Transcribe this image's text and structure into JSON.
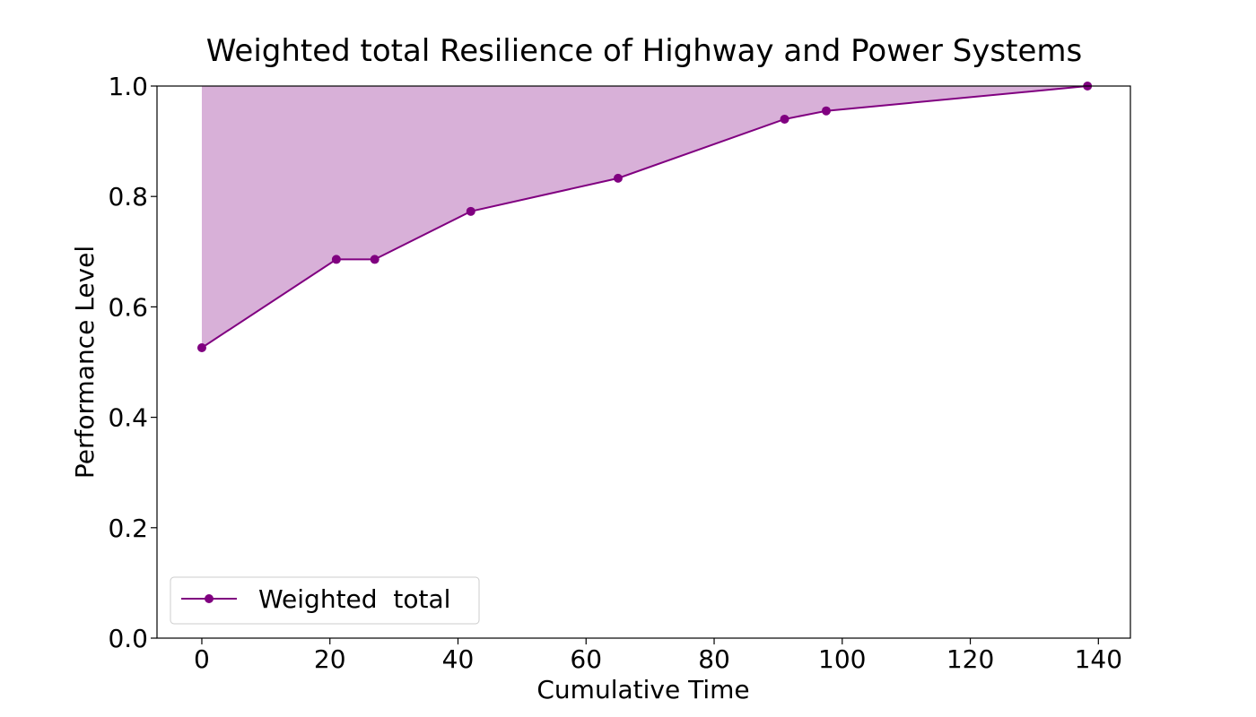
{
  "chart_data": {
    "type": "line",
    "title": "Weighted total Resilience of Highway and Power Systems",
    "xlabel": "Cumulative Time",
    "ylabel": "Performance Level",
    "xlim": [
      -7,
      145
    ],
    "ylim": [
      0,
      1.0
    ],
    "xticks": [
      0,
      20,
      40,
      60,
      80,
      100,
      120,
      140
    ],
    "yticks": [
      0.0,
      0.2,
      0.4,
      0.6,
      0.8,
      1.0
    ],
    "xtick_labels": [
      "0",
      "20",
      "40",
      "60",
      "80",
      "100",
      "120",
      "140"
    ],
    "ytick_labels": [
      "0.0",
      "0.2",
      "0.4",
      "0.6",
      "0.8",
      "1.0"
    ],
    "grid": false,
    "legend_position": "lower-left",
    "series": [
      {
        "name": "Weighted  total",
        "color": "#800080",
        "fill_color": "#d8b0d8",
        "marker": "circle",
        "fill_to": 1.0,
        "x": [
          0,
          21,
          27,
          42,
          65,
          91,
          97.5,
          138.3
        ],
        "y": [
          0.526,
          0.686,
          0.686,
          0.773,
          0.833,
          0.94,
          0.955,
          1.0
        ]
      }
    ]
  }
}
